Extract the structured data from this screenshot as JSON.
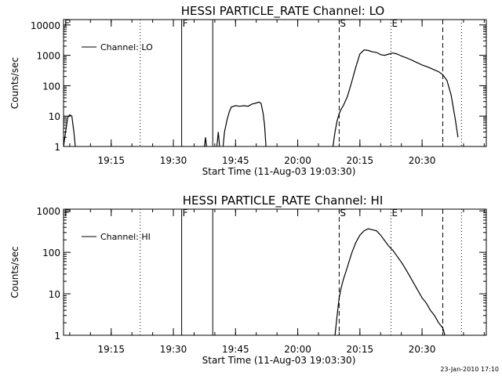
{
  "footer": {
    "timestamp": "23-Jan-2010 17:10"
  },
  "chart_data": [
    {
      "type": "line",
      "title": "HESSI PARTICLE_RATE Channel: LO",
      "xlabel": "Start Time (11-Aug-03 19:03:30)",
      "ylabel": "Counts/sec",
      "y_scale": "log",
      "ylim": [
        1,
        15000
      ],
      "xlim": [
        "19:03:30",
        "20:45:30"
      ],
      "x_ticks": [
        "19:15",
        "19:30",
        "19:45",
        "20:00",
        "20:15",
        "20:30"
      ],
      "y_ticks": [
        "1",
        "10",
        "100",
        "1000",
        "10000"
      ],
      "legend": {
        "position": "top-left",
        "entries": [
          "Channel: LO"
        ]
      },
      "markers": [
        {
          "label": "F",
          "time": "19:03:30",
          "style": "dotted"
        },
        {
          "label": "",
          "time": "19:22:00",
          "style": "dotted"
        },
        {
          "label": "F",
          "time": "19:32:00",
          "style": "solid"
        },
        {
          "label": "",
          "time": "19:39:30",
          "style": "solid"
        },
        {
          "label": "S",
          "time": "20:10:00",
          "style": "dashed"
        },
        {
          "label": "E",
          "time": "20:22:30",
          "style": "dotted"
        },
        {
          "label": "",
          "time": "20:35:00",
          "style": "dashed"
        },
        {
          "label": "",
          "time": "20:39:30",
          "style": "dotted"
        }
      ],
      "series": [
        {
          "name": "Channel: LO",
          "segments": [
            [
              [
                "19:03:30",
                1
              ],
              [
                "19:04:00",
                3
              ],
              [
                "19:04:30",
                9
              ],
              [
                "19:05:00",
                11
              ],
              [
                "19:05:30",
                10
              ],
              [
                "19:06:00",
                3
              ],
              [
                "19:06:20",
                1
              ]
            ],
            [
              [
                "19:37:30",
                1
              ],
              [
                "19:37:45",
                2
              ],
              [
                "19:38:00",
                1
              ]
            ],
            [
              [
                "19:40:30",
                1
              ],
              [
                "19:40:50",
                3
              ],
              [
                "19:41:10",
                1
              ]
            ],
            [
              [
                "19:42:00",
                1
              ],
              [
                "19:42:20",
                3
              ],
              [
                "19:43:00",
                8
              ],
              [
                "19:43:30",
                14
              ],
              [
                "19:44:00",
                20
              ],
              [
                "19:45:00",
                22
              ],
              [
                "19:46:00",
                21
              ],
              [
                "19:47:00",
                22
              ],
              [
                "19:48:00",
                21
              ],
              [
                "19:49:00",
                25
              ],
              [
                "19:50:00",
                27
              ],
              [
                "19:50:40",
                29
              ],
              [
                "19:51:10",
                26
              ],
              [
                "19:51:40",
                12
              ],
              [
                "19:52:00",
                5
              ],
              [
                "19:52:20",
                1
              ]
            ],
            [
              [
                "20:08:30",
                1
              ],
              [
                "20:09:00",
                3
              ],
              [
                "20:09:30",
                7
              ],
              [
                "20:10:00",
                12
              ],
              [
                "20:10:30",
                17
              ],
              [
                "20:11:00",
                22
              ],
              [
                "20:12:00",
                45
              ],
              [
                "20:13:00",
                130
              ],
              [
                "20:14:00",
                400
              ],
              [
                "20:15:00",
                1100
              ],
              [
                "20:16:00",
                1500
              ],
              [
                "20:17:00",
                1450
              ],
              [
                "20:18:00",
                1300
              ],
              [
                "20:19:00",
                1250
              ],
              [
                "20:20:00",
                1050
              ],
              [
                "20:21:00",
                1000
              ],
              [
                "20:22:00",
                1100
              ],
              [
                "20:23:00",
                1200
              ],
              [
                "20:24:00",
                1100
              ],
              [
                "20:25:00",
                950
              ],
              [
                "20:26:00",
                850
              ],
              [
                "20:27:00",
                750
              ],
              [
                "20:28:00",
                650
              ],
              [
                "20:29:00",
                560
              ],
              [
                "20:30:00",
                480
              ],
              [
                "20:31:00",
                430
              ],
              [
                "20:32:00",
                380
              ],
              [
                "20:33:00",
                330
              ],
              [
                "20:34:00",
                290
              ],
              [
                "20:35:00",
                230
              ],
              [
                "20:36:00",
                150
              ],
              [
                "20:37:00",
                50
              ],
              [
                "20:38:00",
                8
              ],
              [
                "20:38:40",
                2
              ]
            ]
          ]
        }
      ]
    },
    {
      "type": "line",
      "title": "HESSI PARTICLE_RATE Channel: HI",
      "xlabel": "Start Time (11-Aug-03 19:03:30)",
      "ylabel": "Counts/sec",
      "y_scale": "log",
      "ylim": [
        1,
        1100
      ],
      "xlim": [
        "19:03:30",
        "20:45:30"
      ],
      "x_ticks": [
        "19:15",
        "19:30",
        "19:45",
        "20:00",
        "20:15",
        "20:30"
      ],
      "y_ticks": [
        "1",
        "10",
        "100",
        "1000"
      ],
      "legend": {
        "position": "top-left",
        "entries": [
          "Channel: HI"
        ]
      },
      "markers": [
        {
          "label": "F",
          "time": "19:03:30",
          "style": "dotted"
        },
        {
          "label": "",
          "time": "19:22:00",
          "style": "dotted"
        },
        {
          "label": "F",
          "time": "19:32:00",
          "style": "solid"
        },
        {
          "label": "",
          "time": "19:39:30",
          "style": "solid"
        },
        {
          "label": "S",
          "time": "20:10:00",
          "style": "dashed"
        },
        {
          "label": "E",
          "time": "20:22:30",
          "style": "dotted"
        },
        {
          "label": "",
          "time": "20:35:00",
          "style": "dashed"
        },
        {
          "label": "",
          "time": "20:39:30",
          "style": "dotted"
        }
      ],
      "series": [
        {
          "name": "Channel: HI",
          "segments": [
            [
              [
                "20:09:00",
                1
              ],
              [
                "20:09:30",
                3
              ],
              [
                "20:10:00",
                8
              ],
              [
                "20:10:30",
                14
              ],
              [
                "20:11:00",
                22
              ],
              [
                "20:12:00",
                45
              ],
              [
                "20:13:00",
                95
              ],
              [
                "20:14:00",
                170
              ],
              [
                "20:15:00",
                260
              ],
              [
                "20:16:00",
                330
              ],
              [
                "20:17:00",
                370
              ],
              [
                "20:18:00",
                350
              ],
              [
                "20:19:00",
                330
              ],
              [
                "20:20:00",
                260
              ],
              [
                "20:21:00",
                190
              ],
              [
                "20:22:00",
                140
              ],
              [
                "20:23:00",
                110
              ],
              [
                "20:24:00",
                80
              ],
              [
                "20:25:00",
                58
              ],
              [
                "20:26:00",
                40
              ],
              [
                "20:27:00",
                27
              ],
              [
                "20:28:00",
                18
              ],
              [
                "20:29:00",
                12
              ],
              [
                "20:30:00",
                8
              ],
              [
                "20:31:00",
                6
              ],
              [
                "20:32:00",
                4
              ],
              [
                "20:33:00",
                3
              ],
              [
                "20:34:00",
                2
              ],
              [
                "20:35:00",
                1.5
              ],
              [
                "20:35:30",
                1
              ]
            ]
          ]
        }
      ]
    }
  ]
}
